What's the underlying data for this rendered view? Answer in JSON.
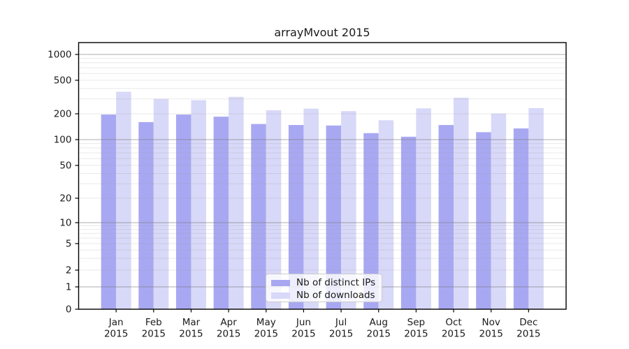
{
  "chart_data": {
    "type": "bar",
    "title": "arrayMvout 2015",
    "categories": [
      "Jan",
      "Feb",
      "Mar",
      "Apr",
      "May",
      "Jun",
      "Jul",
      "Aug",
      "Sep",
      "Oct",
      "Nov",
      "Dec"
    ],
    "x_year_label": "2015",
    "series": [
      {
        "name": "Nb of distinct IPs",
        "color": "#a8a8f2",
        "values": [
          196,
          160,
          196,
          185,
          152,
          148,
          146,
          119,
          108,
          148,
          122,
          135
        ]
      },
      {
        "name": "Nb of downloads",
        "color": "#d8d8f8",
        "values": [
          365,
          300,
          290,
          318,
          220,
          230,
          215,
          168,
          232,
          310,
          201,
          233
        ]
      }
    ],
    "yscale": "symlog",
    "yticks": [
      0,
      1,
      2,
      5,
      10,
      20,
      50,
      100,
      200,
      500,
      1000
    ],
    "ylim": [
      0,
      1500
    ],
    "grid": true,
    "legend_position": "lower center"
  }
}
